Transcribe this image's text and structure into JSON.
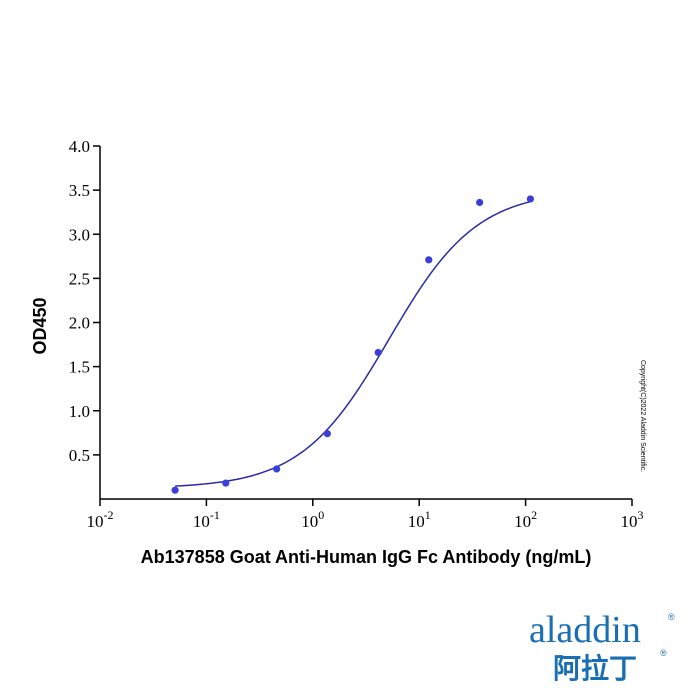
{
  "chart_data": {
    "type": "scatter",
    "xlabel": "Ab137858 Goat Anti-Human IgG Fc Antibody (ng/mL)",
    "ylabel": "OD450",
    "x_scale": "log",
    "xlim": [
      0.01,
      1000
    ],
    "ylim": [
      0,
      4.0
    ],
    "x_ticks": [
      {
        "value": 0.01,
        "base": "10",
        "exp": "-2"
      },
      {
        "value": 0.1,
        "base": "10",
        "exp": "-1"
      },
      {
        "value": 1,
        "base": "10",
        "exp": "0"
      },
      {
        "value": 10,
        "base": "10",
        "exp": "1"
      },
      {
        "value": 100,
        "base": "10",
        "exp": "2"
      },
      {
        "value": 1000,
        "base": "10",
        "exp": "3"
      }
    ],
    "y_ticks": [
      {
        "value": 0.5,
        "label": "0.5"
      },
      {
        "value": 1.0,
        "label": "1.0"
      },
      {
        "value": 1.5,
        "label": "1.5"
      },
      {
        "value": 2.0,
        "label": "2.0"
      },
      {
        "value": 2.5,
        "label": "2.5"
      },
      {
        "value": 3.0,
        "label": "3.0"
      },
      {
        "value": 3.5,
        "label": "3.5"
      },
      {
        "value": 4.0,
        "label": "4.0"
      }
    ],
    "points": [
      {
        "x": 0.0508,
        "y": 0.1
      },
      {
        "x": 0.152,
        "y": 0.18
      },
      {
        "x": 0.457,
        "y": 0.34
      },
      {
        "x": 1.37,
        "y": 0.74
      },
      {
        "x": 4.12,
        "y": 1.66
      },
      {
        "x": 12.3,
        "y": 2.71
      },
      {
        "x": 37.0,
        "y": 3.36
      },
      {
        "x": 111,
        "y": 3.4
      }
    ],
    "fit": {
      "model": "4PL",
      "bottom": 0.12,
      "top": 3.5,
      "ec50": 5.2,
      "hill": 1.05,
      "x_range": [
        0.0508,
        111
      ]
    },
    "grid": false,
    "colors": {
      "marker": "#3a3fd8",
      "curve": "#2a2aa6",
      "axis": "#000000"
    }
  },
  "copyright": "Copyright(C)2022 Aladdin Scientific.",
  "logo": {
    "latin": "aladdin",
    "cjk": "阿拉丁",
    "registered": "®",
    "color": "#1a6fb3"
  }
}
